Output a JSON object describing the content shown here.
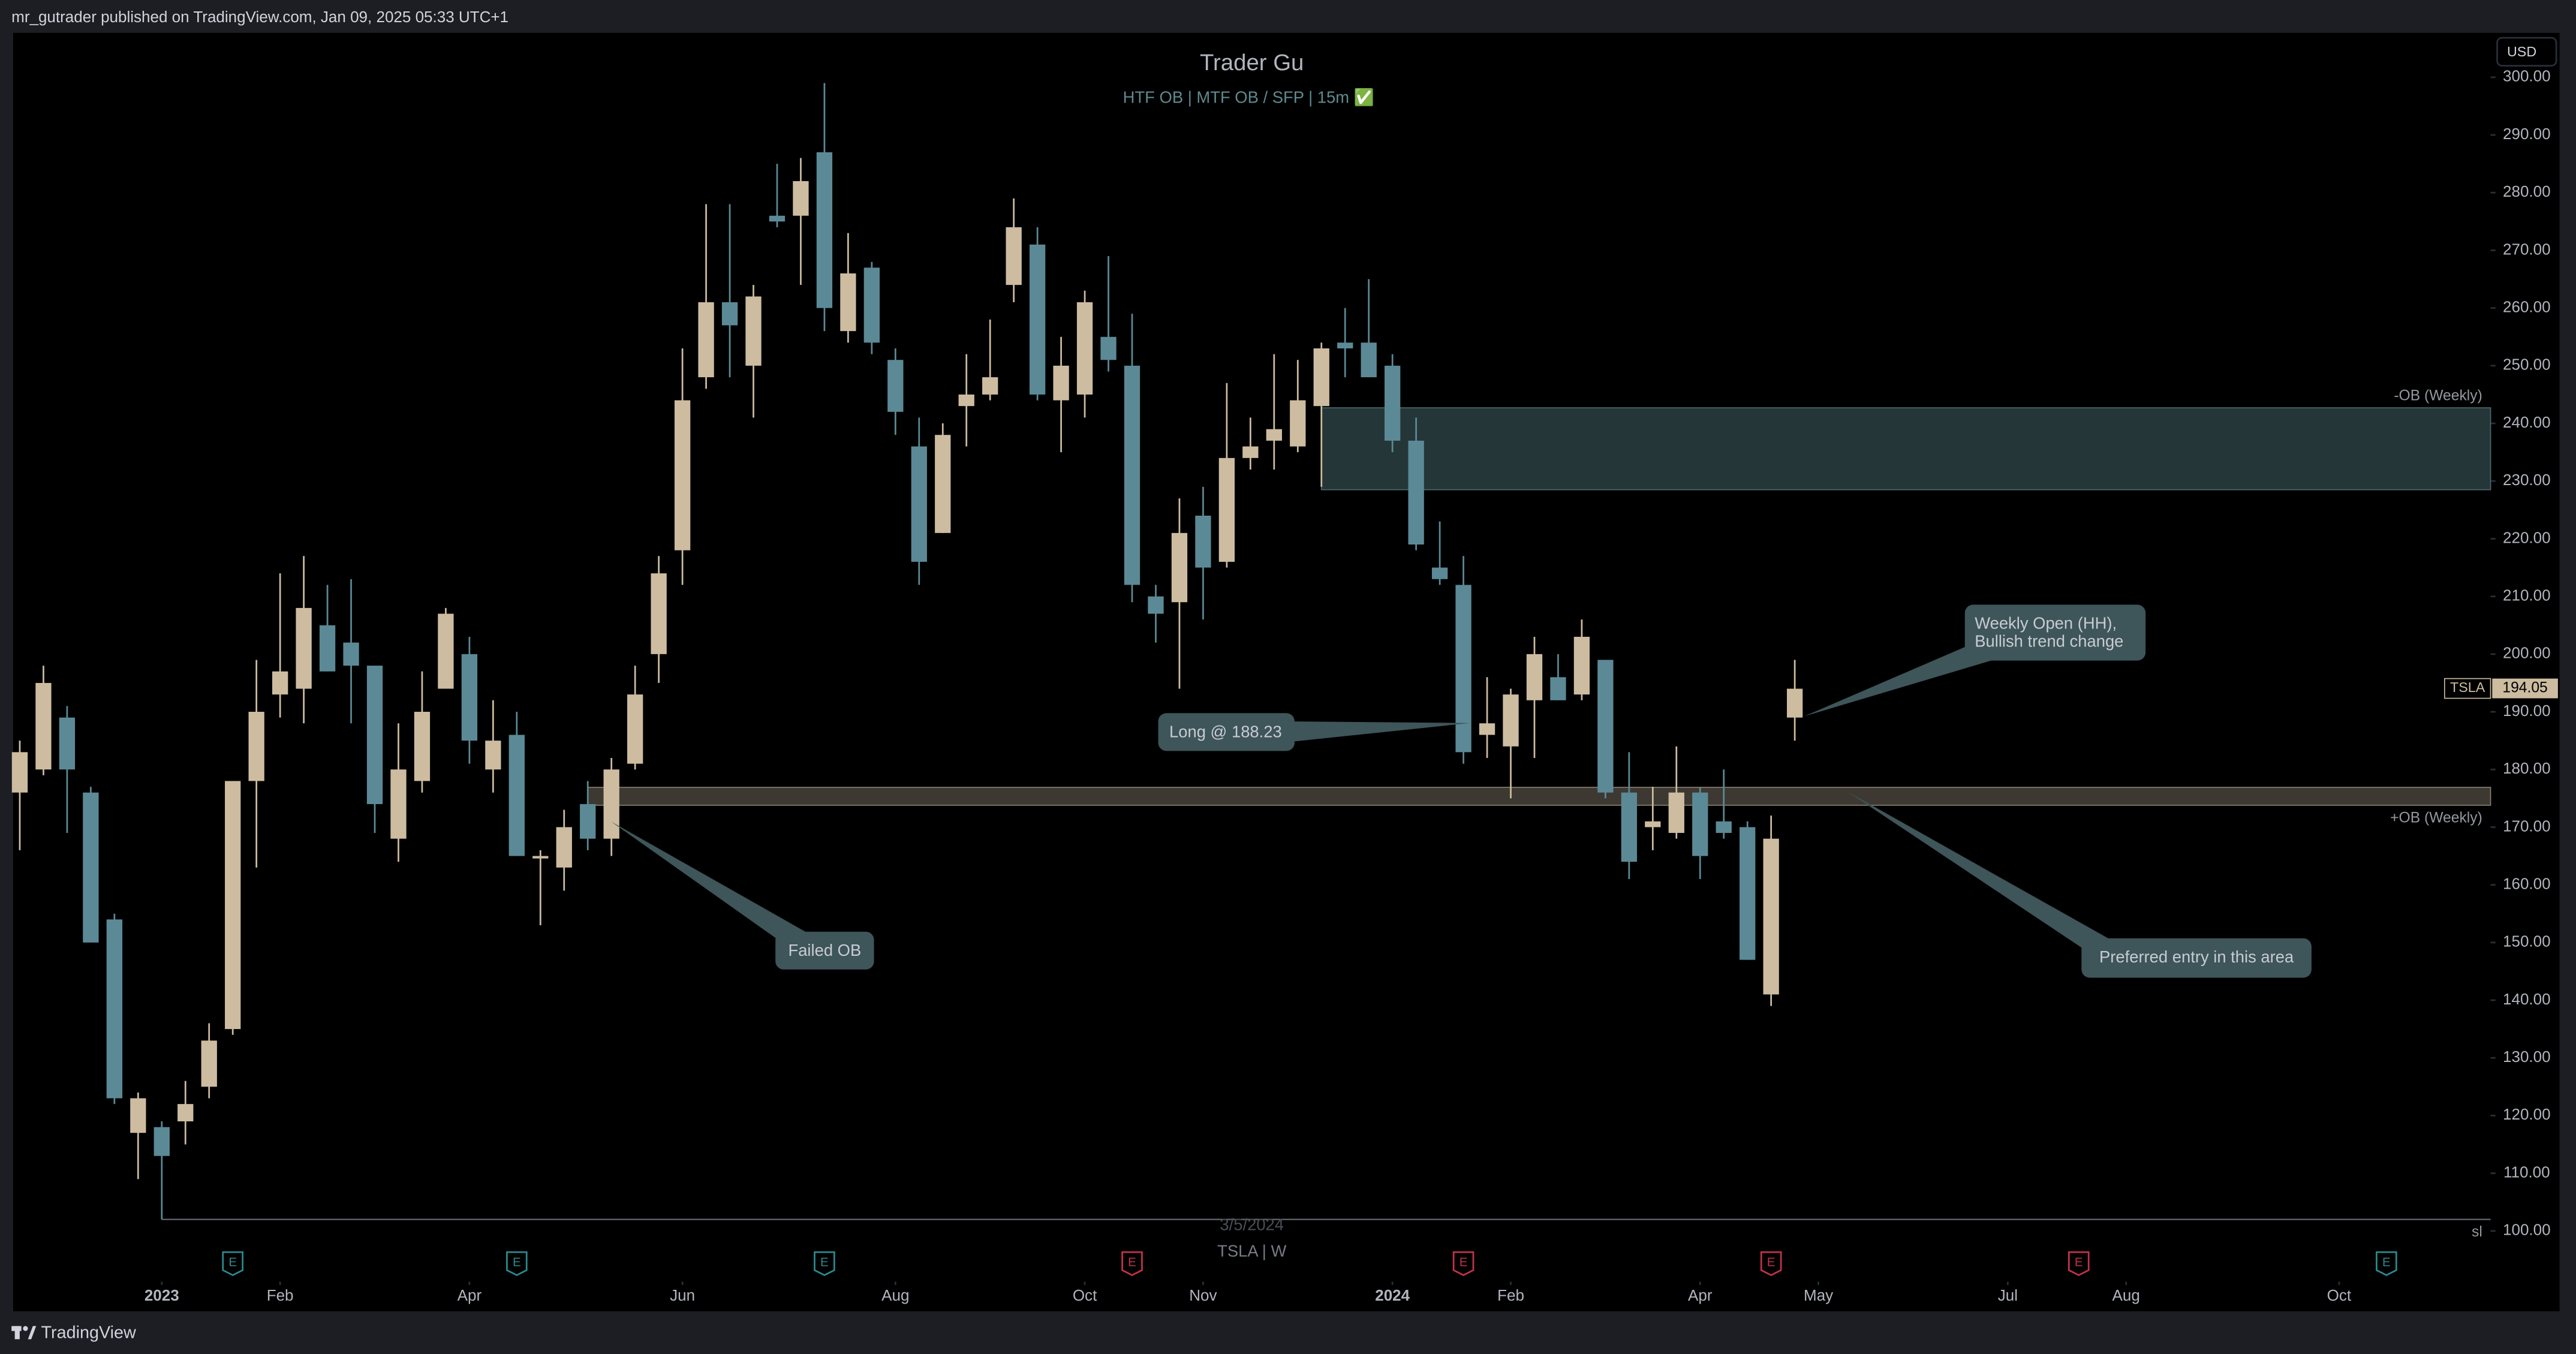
{
  "header": "mr_gutrader published on TradingView.com, Jan 09, 2025 05:33 UTC+1",
  "footer": "TradingView",
  "currency": "USD",
  "chart_data": {
    "type": "candlestick",
    "title": "Trader Gu",
    "subtitle": "HTF OB  |  MTF OB / SFP  |  15m ✅",
    "symbol": "TSLA",
    "last_price": 194.05,
    "bottom_date": "3/5/2024",
    "bottom_caption": "TSLA | W",
    "up_color": "#cdbca0",
    "down_color": "#5b8a96",
    "ohlc": [
      [
        176,
        185,
        166,
        183
      ],
      [
        180,
        198,
        179,
        195
      ],
      [
        189,
        191,
        169,
        180
      ],
      [
        176,
        177,
        150,
        150
      ],
      [
        154,
        155,
        122,
        123
      ],
      [
        117,
        124,
        109,
        123
      ],
      [
        118,
        119,
        102,
        113
      ],
      [
        119,
        126,
        115,
        122
      ],
      [
        125,
        136,
        123,
        133
      ],
      [
        135,
        178,
        134,
        178
      ],
      [
        178,
        199,
        163,
        190
      ],
      [
        193,
        214,
        189,
        197
      ],
      [
        194,
        217,
        188,
        208
      ],
      [
        205,
        212,
        197,
        197
      ],
      [
        202,
        213,
        188,
        198
      ],
      [
        198,
        198,
        169,
        174
      ],
      [
        168,
        188,
        164,
        180
      ],
      [
        178,
        197,
        176,
        190
      ],
      [
        194,
        208,
        194,
        207
      ],
      [
        200,
        203,
        181,
        185
      ],
      [
        180,
        192,
        176,
        185
      ],
      [
        186,
        190,
        165,
        165
      ],
      [
        165,
        166,
        153,
        165
      ],
      [
        163,
        173,
        159,
        170
      ],
      [
        174,
        178,
        166,
        168
      ],
      [
        168,
        182,
        165,
        180
      ],
      [
        181,
        198,
        180,
        193
      ],
      [
        200,
        217,
        195,
        214
      ],
      [
        218,
        253,
        212,
        244
      ],
      [
        248,
        278,
        246,
        261
      ],
      [
        261,
        278,
        248,
        257
      ],
      [
        250,
        264,
        241,
        262
      ],
      [
        276,
        285,
        274,
        275
      ],
      [
        276,
        286,
        264,
        282
      ],
      [
        287,
        299,
        256,
        260
      ],
      [
        256,
        273,
        254,
        266
      ],
      [
        267,
        268,
        252,
        254
      ],
      [
        251,
        253,
        238,
        242
      ],
      [
        236,
        241,
        212,
        216
      ],
      [
        221,
        240,
        221,
        238
      ],
      [
        243,
        252,
        236,
        245
      ],
      [
        245,
        258,
        244,
        248
      ],
      [
        264,
        279,
        261,
        274
      ],
      [
        271,
        274,
        244,
        245
      ],
      [
        244,
        255,
        235,
        250
      ],
      [
        245,
        263,
        241,
        261
      ],
      [
        255,
        269,
        249,
        251
      ],
      [
        250,
        259,
        209,
        212
      ],
      [
        210,
        212,
        202,
        207
      ],
      [
        209,
        227,
        194,
        221
      ],
      [
        224,
        229,
        206,
        215
      ],
      [
        216,
        247,
        215,
        234
      ],
      [
        234,
        241,
        232,
        236
      ],
      [
        237,
        252,
        232,
        239
      ],
      [
        236,
        251,
        235,
        244
      ],
      [
        243,
        254,
        229,
        253
      ],
      [
        254,
        260,
        248,
        253
      ],
      [
        254,
        265,
        248,
        248
      ],
      [
        250,
        252,
        235,
        237
      ],
      [
        237,
        241,
        218,
        219
      ],
      [
        215,
        223,
        212,
        213
      ],
      [
        212,
        217,
        181,
        183
      ],
      [
        186,
        196,
        182,
        188
      ],
      [
        184,
        194,
        175,
        193
      ],
      [
        192,
        203,
        182,
        200
      ],
      [
        196,
        200,
        192,
        192
      ],
      [
        193,
        206,
        192,
        203
      ],
      [
        199,
        199,
        175,
        176
      ],
      [
        176,
        183,
        161,
        164
      ],
      [
        170,
        177,
        166,
        171
      ],
      [
        169,
        184,
        168,
        176
      ],
      [
        176,
        177,
        161,
        165
      ],
      [
        171,
        180,
        168,
        169
      ],
      [
        170,
        171,
        147,
        147
      ],
      [
        141,
        172,
        139,
        168
      ],
      [
        189,
        199,
        185,
        194
      ]
    ],
    "xlim": [
      -0.28,
      104.4
    ],
    "xticks": [
      {
        "value": 6,
        "label": "2023"
      },
      {
        "value": 11,
        "label": "Feb"
      },
      {
        "value": 19,
        "label": "Apr"
      },
      {
        "value": 28,
        "label": "Jun"
      },
      {
        "value": 37,
        "label": "Aug"
      },
      {
        "value": 45,
        "label": "Oct"
      },
      {
        "value": 50,
        "label": "Nov"
      },
      {
        "value": 58,
        "label": "2024"
      },
      {
        "value": 63,
        "label": "Feb"
      },
      {
        "value": 71,
        "label": "Apr"
      },
      {
        "value": 76,
        "label": "May"
      },
      {
        "value": 84,
        "label": "Jul"
      },
      {
        "value": 89,
        "label": "Aug"
      },
      {
        "value": 98,
        "label": "Oct"
      }
    ],
    "ylim": [
      91.2,
      307.7
    ],
    "yticks": [
      {
        "value": 100,
        "label": "100.00"
      },
      {
        "value": 110,
        "label": "110.00"
      },
      {
        "value": 120,
        "label": "120.00"
      },
      {
        "value": 130,
        "label": "130.00"
      },
      {
        "value": 140,
        "label": "140.00"
      },
      {
        "value": 150,
        "label": "150.00"
      },
      {
        "value": 160,
        "label": "160.00"
      },
      {
        "value": 170,
        "label": "170.00"
      },
      {
        "value": 180,
        "label": "180.00"
      },
      {
        "value": 190,
        "label": "190.00"
      },
      {
        "value": 200,
        "label": "200.00"
      },
      {
        "value": 210,
        "label": "210.00"
      },
      {
        "value": 220,
        "label": "220.00"
      },
      {
        "value": 230,
        "label": "230.00"
      },
      {
        "value": 240,
        "label": "240.00"
      },
      {
        "value": 250,
        "label": "250.00"
      },
      {
        "value": 260,
        "label": "260.00"
      },
      {
        "value": 270,
        "label": "270.00"
      },
      {
        "value": 280,
        "label": "280.00"
      },
      {
        "value": 290,
        "label": "290.00"
      },
      {
        "value": 300,
        "label": "300.00"
      }
    ],
    "zones": [
      {
        "label": "-OB (Weekly)",
        "top": 242.7,
        "bottom": 228.5,
        "x_start": 55,
        "color": "#253638",
        "border": "#4a6a6e",
        "label_side": "above"
      },
      {
        "label": "+OB (Weekly)",
        "top": 176.9,
        "bottom": 173.8,
        "x_start": 24,
        "color": "#3d3932",
        "border": "#8a8070",
        "label_side": "below"
      }
    ],
    "stop_loss": {
      "label": "sl",
      "value": 102,
      "x_start": 6
    },
    "earnings": [
      {
        "label": "E",
        "x": 9,
        "color": "#2b8a8f"
      },
      {
        "label": "E",
        "x": 21,
        "color": "#2b8a8f"
      },
      {
        "label": "E",
        "x": 34,
        "color": "#2b8a8f"
      },
      {
        "label": "E",
        "x": 47,
        "color": "#c2334a"
      },
      {
        "label": "E",
        "x": 61,
        "color": "#c2334a"
      },
      {
        "label": "E",
        "x": 74,
        "color": "#c2334a"
      },
      {
        "label": "E",
        "x": 87,
        "color": "#c2334a"
      },
      {
        "label": "E",
        "x": 100,
        "color": "#2b8a8f"
      }
    ],
    "annotations": [
      "Long @ 188.23",
      "Weekly Open (HH),",
      "Bullish trend change",
      "Failed OB",
      "Preferred entry in this area"
    ]
  }
}
